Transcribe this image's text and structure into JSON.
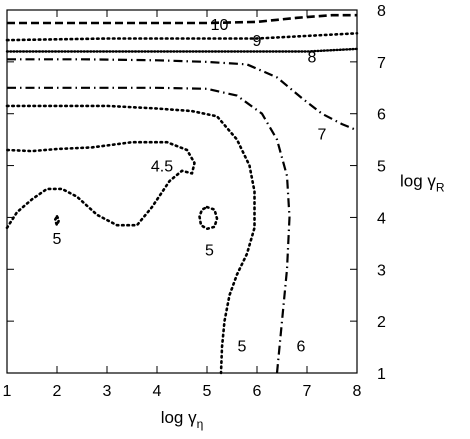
{
  "chart_data": {
    "type": "contour",
    "xlabel": "log γ",
    "xlabel_sub": "η",
    "ylabel": "log γ",
    "ylabel_sub": "R",
    "xlim": [
      1,
      8
    ],
    "ylim": [
      1,
      8
    ],
    "x_ticks": [
      "1",
      "2",
      "3",
      "4",
      "5",
      "6",
      "7",
      "8"
    ],
    "y_ticks": [
      "1",
      "2",
      "3",
      "4",
      "5",
      "6",
      "7",
      "8"
    ],
    "y_axis_side": "right",
    "grid": false,
    "contours": [
      {
        "level": "4.5",
        "style": "dotted",
        "points": [
          [
            1.0,
            3.8
          ],
          [
            1.2,
            4.1
          ],
          [
            1.5,
            4.35
          ],
          [
            1.8,
            4.55
          ],
          [
            2.1,
            4.55
          ],
          [
            2.4,
            4.4
          ],
          [
            2.8,
            4.05
          ],
          [
            3.2,
            3.85
          ],
          [
            3.6,
            3.85
          ],
          [
            3.9,
            4.2
          ],
          [
            4.25,
            4.7
          ],
          [
            4.5,
            4.9
          ],
          [
            4.7,
            4.85
          ],
          [
            4.75,
            5.05
          ],
          [
            4.6,
            5.3
          ],
          [
            4.2,
            5.45
          ],
          [
            3.5,
            5.45
          ],
          [
            2.7,
            5.35
          ],
          [
            2.0,
            5.32
          ],
          [
            1.5,
            5.28
          ],
          [
            1.0,
            5.3
          ]
        ]
      },
      {
        "level": "5",
        "style": "dotted",
        "points": [
          [
            1.0,
            6.15
          ],
          [
            2.0,
            6.15
          ],
          [
            3.0,
            6.15
          ],
          [
            4.0,
            6.1
          ],
          [
            4.7,
            6.05
          ],
          [
            5.2,
            5.95
          ],
          [
            5.6,
            5.5
          ],
          [
            5.85,
            5.0
          ],
          [
            5.95,
            4.5
          ],
          [
            5.95,
            3.8
          ],
          [
            5.8,
            3.3
          ],
          [
            5.6,
            2.9
          ],
          [
            5.45,
            2.5
          ],
          [
            5.35,
            2.0
          ],
          [
            5.3,
            1.5
          ],
          [
            5.28,
            1.0
          ]
        ]
      },
      {
        "level": "5",
        "style": "dotted",
        "points": [
          [
            5.0,
            4.2
          ],
          [
            5.15,
            4.15
          ],
          [
            5.2,
            3.98
          ],
          [
            5.15,
            3.82
          ],
          [
            5.0,
            3.78
          ],
          [
            4.88,
            3.85
          ],
          [
            4.85,
            4.02
          ],
          [
            4.9,
            4.15
          ],
          [
            5.0,
            4.2
          ]
        ]
      },
      {
        "level": "5",
        "style": "dotted",
        "points": [
          [
            2.0,
            4.02
          ],
          [
            2.04,
            3.95
          ],
          [
            2.0,
            3.85
          ],
          [
            1.96,
            3.95
          ],
          [
            2.0,
            4.02
          ]
        ]
      },
      {
        "level": "6",
        "style": "dash-dot",
        "points": [
          [
            1.0,
            6.5
          ],
          [
            2.5,
            6.5
          ],
          [
            4.0,
            6.5
          ],
          [
            5.0,
            6.48
          ],
          [
            5.6,
            6.35
          ],
          [
            6.1,
            6.0
          ],
          [
            6.4,
            5.5
          ],
          [
            6.6,
            4.8
          ],
          [
            6.65,
            4.0
          ],
          [
            6.6,
            3.0
          ],
          [
            6.5,
            2.0
          ],
          [
            6.45,
            1.5
          ],
          [
            6.4,
            1.0
          ]
        ]
      },
      {
        "level": "7",
        "style": "dash-dot",
        "points": [
          [
            1.0,
            7.05
          ],
          [
            2.5,
            7.05
          ],
          [
            4.0,
            7.03
          ],
          [
            5.0,
            7.0
          ],
          [
            5.8,
            6.95
          ],
          [
            6.4,
            6.7
          ],
          [
            6.9,
            6.3
          ],
          [
            7.3,
            6.0
          ],
          [
            7.7,
            5.8
          ],
          [
            8.0,
            5.68
          ]
        ]
      },
      {
        "level": "8",
        "style": "dense-dotted",
        "points": [
          [
            1.0,
            7.2
          ],
          [
            3.0,
            7.2
          ],
          [
            5.0,
            7.2
          ],
          [
            7.0,
            7.2
          ],
          [
            8.0,
            7.25
          ]
        ]
      },
      {
        "level": "9",
        "style": "dotted",
        "points": [
          [
            1.0,
            7.42
          ],
          [
            3.0,
            7.45
          ],
          [
            5.0,
            7.45
          ],
          [
            6.0,
            7.45
          ],
          [
            7.0,
            7.5
          ],
          [
            8.0,
            7.55
          ]
        ]
      },
      {
        "level": "10",
        "style": "dashed",
        "points": [
          [
            1.0,
            7.75
          ],
          [
            3.0,
            7.75
          ],
          [
            5.0,
            7.75
          ],
          [
            6.0,
            7.77
          ],
          [
            6.8,
            7.85
          ],
          [
            7.5,
            7.9
          ],
          [
            8.0,
            7.9
          ]
        ]
      }
    ],
    "labels": [
      {
        "text": "10",
        "x": 5.25,
        "y": 7.73
      },
      {
        "text": "9",
        "x": 6.0,
        "y": 7.42
      },
      {
        "text": "8",
        "x": 7.1,
        "y": 7.1
      },
      {
        "text": "7",
        "x": 7.3,
        "y": 5.62
      },
      {
        "text": "4.5",
        "x": 4.1,
        "y": 5.0
      },
      {
        "text": "5",
        "x": 2.0,
        "y": 3.6
      },
      {
        "text": "5",
        "x": 5.05,
        "y": 3.38
      },
      {
        "text": "5",
        "x": 5.7,
        "y": 1.53
      },
      {
        "text": "6",
        "x": 6.88,
        "y": 1.53
      }
    ]
  }
}
